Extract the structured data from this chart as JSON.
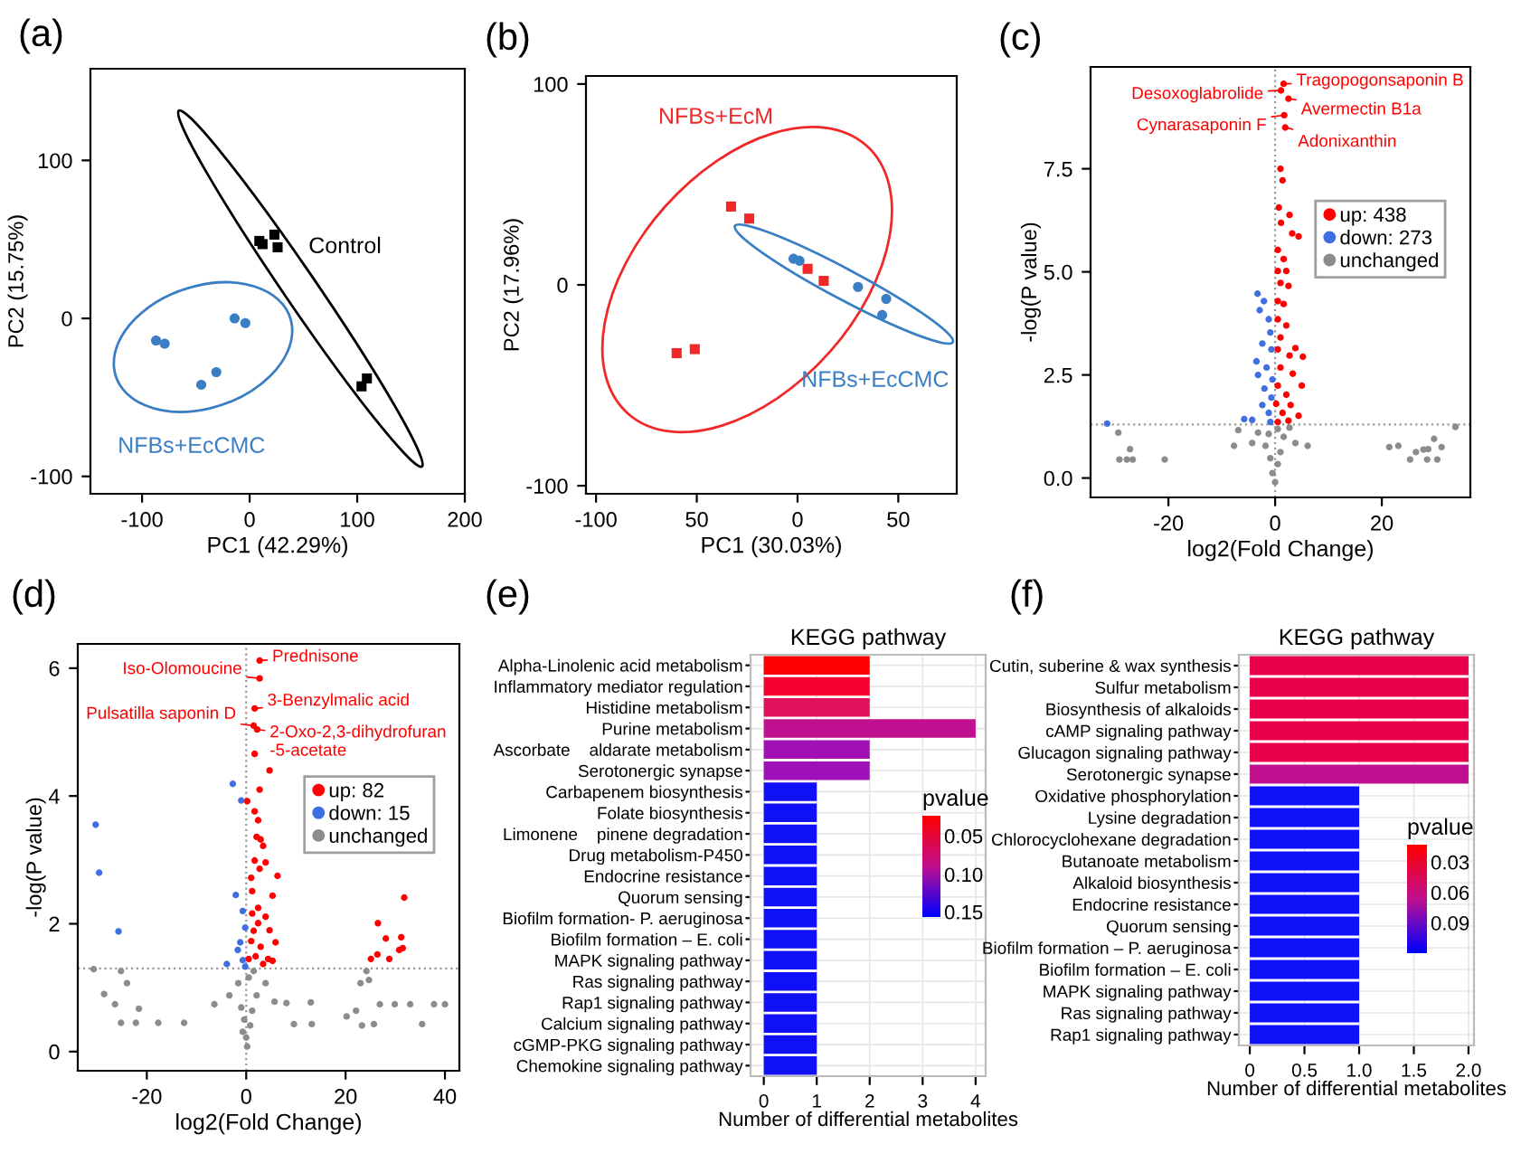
{
  "chart_data": [
    {
      "type": "scatter",
      "annotations": [
        "(a)"
      ],
      "xlabel": "PC1 (42.29%)",
      "ylabel": "PC2 (15.75%)",
      "xlim": [
        -148,
        200
      ],
      "ylim": [
        -111,
        158
      ],
      "xticks": [
        -100,
        0,
        100,
        200
      ],
      "yticks": [
        -100,
        0,
        100
      ],
      "series": [
        {
          "name": "Control",
          "color": "#000000",
          "marker": "square",
          "x": [
            9,
            12,
            23,
            26,
            104,
            109
          ],
          "values": [
            49,
            47,
            53,
            45,
            -43,
            -38
          ]
        },
        {
          "name": "NFBs+EcCMC",
          "color": "#3a7fc4",
          "marker": "circle",
          "x": [
            -87,
            -79,
            -14,
            -4,
            -31,
            -45
          ],
          "values": [
            -14,
            -16,
            0,
            -3,
            -34,
            -42
          ]
        }
      ]
    },
    {
      "type": "scatter",
      "annotations": [
        "(b)"
      ],
      "xlabel": "PC1 (30.03%)",
      "ylabel": "PC2 (17.96%)",
      "xlim": [
        -105,
        79
      ],
      "ylim": [
        -104,
        104
      ],
      "xticks": [
        -100,
        {
          "value": -50,
          "label": "50"
        },
        0,
        50
      ],
      "yticks": [
        -100,
        0,
        100
      ],
      "series": [
        {
          "name": "NFBs+EcM",
          "color": "#f02828",
          "marker": "square",
          "x": [
            -33,
            -24,
            5,
            13,
            -60,
            -51
          ],
          "values": [
            39,
            33,
            8,
            2,
            -34,
            -32
          ]
        },
        {
          "name": "NFBs+EcCMC",
          "color": "#3a7fc4",
          "marker": "circle",
          "x": [
            -2,
            1,
            30,
            44,
            42
          ],
          "values": [
            13,
            12,
            -1,
            -7,
            -15
          ]
        }
      ]
    },
    {
      "type": "scatter",
      "xlabel": "log2(Fold Change)",
      "ylabel": "-log(P value)",
      "xlim": [
        -34.6,
        36.6
      ],
      "ylim": [
        -0.47,
        9.97
      ],
      "xticks": [
        -20,
        0,
        20
      ],
      "yticks": [
        {
          "value": 0,
          "label": "0.0"
        },
        2.5,
        {
          "value": 5,
          "label": "5.0"
        },
        7.5
      ],
      "legend": "right",
      "marker": "circle",
      "ref_lines": [
        {
          "axis": "y",
          "value": 1.3,
          "color": "#999999",
          "line_style": "dotted"
        },
        {
          "axis": "x",
          "value": 0,
          "color": "#999999",
          "line_style": "dotted"
        }
      ],
      "annotations": [
        "(c)",
        {
          "text": "Tragopogonsaponin B",
          "x": 1.6,
          "y": 9.56
        },
        {
          "text": "Desoxoglabrolide",
          "x": 1.1,
          "y": 9.4
        },
        {
          "text": "Avermectin B1a",
          "x": 2.5,
          "y": 9.2
        },
        {
          "text": "Cynarasaponin F",
          "x": 1.7,
          "y": 8.8
        },
        {
          "text": "Adonixanthin",
          "x": 1.9,
          "y": 8.5
        }
      ],
      "series": [
        {
          "name": "up: 438",
          "color": "#ff0000",
          "x": [
            1.6,
            1.1,
            2.5,
            1.7,
            1.9,
            1.0,
            1.4,
            0.7,
            2.7,
            1.1,
            3.2,
            4.4,
            0.5,
            1.6,
            0.5,
            2.1,
            1.0,
            2.5,
            0.5,
            1.6,
            0.5,
            2.1,
            1.0,
            0.5,
            3.8,
            2.7,
            5.2,
            1.0,
            3.3,
            0.5,
            5.0,
            2.1,
            0.2,
            2.9,
            1.4,
            4.4,
            0.5,
            2.5
          ],
          "values": [
            9.56,
            9.4,
            9.2,
            8.8,
            8.5,
            7.5,
            7.22,
            6.56,
            6.38,
            6.19,
            5.93,
            5.86,
            5.53,
            5.31,
            5.02,
            5.02,
            4.73,
            4.66,
            4.29,
            4.22,
            3.85,
            3.7,
            3.41,
            3.12,
            3.15,
            2.97,
            2.94,
            2.68,
            2.53,
            2.24,
            2.24,
            2.02,
            1.8,
            1.77,
            1.58,
            1.51,
            1.36,
            1.39
          ]
        },
        {
          "name": "down: 273",
          "color": "#3f6fe0",
          "x": [
            -3.3,
            -2.1,
            -2.9,
            -1.2,
            -0.9,
            -2.4,
            -0.7,
            -3.5,
            -1.6,
            -3.2,
            -0.5,
            -2.0,
            -0.7,
            -2.4,
            -1.2,
            -5.8,
            -4.3,
            -0.9,
            -31.5
          ],
          "values": [
            4.47,
            4.29,
            4.07,
            3.85,
            3.53,
            3.26,
            3.12,
            2.83,
            2.68,
            2.5,
            2.39,
            2.17,
            1.95,
            1.77,
            1.58,
            1.43,
            1.41,
            1.36,
            1.32
          ]
        },
        {
          "name": "unchanged",
          "color": "#8c8c8c",
          "x": [
            -29.4,
            -27.2,
            -29.2,
            -27.8,
            -26.7,
            -20.7,
            -6.9,
            -7.7,
            -4.3,
            -3.2,
            -1.8,
            -0.9,
            -0.5,
            0,
            0.5,
            1.0,
            1.6,
            2.7,
            3.8,
            6.1,
            -1.2,
            0.5,
            21.4,
            23.1,
            25.3,
            26.4,
            27.8,
            28.5,
            29.8,
            31.2,
            30.4,
            33.8,
            28.7
          ],
          "values": [
            1.1,
            0.7,
            0.45,
            0.45,
            0.45,
            0.45,
            1.16,
            0.78,
            0.85,
            1.1,
            0.78,
            0.48,
            0.12,
            -0.1,
            0.34,
            0.63,
            1.0,
            1.22,
            0.85,
            0.78,
            1.07,
            1.19,
            0.75,
            0.78,
            0.45,
            0.63,
            0.69,
            0.45,
            0.95,
            0.75,
            0.45,
            1.24,
            0.7
          ]
        }
      ]
    },
    {
      "type": "scatter",
      "xlabel": "log2(Fold Change)",
      "ylabel": "-log(P value)",
      "xlim": [
        -33.9,
        42.9
      ],
      "ylim": [
        -0.3,
        6.38
      ],
      "xticks": [
        -20,
        0,
        20,
        40
      ],
      "yticks": [
        0,
        2,
        4,
        6
      ],
      "legend": "right",
      "marker": "circle",
      "ref_lines": [
        {
          "axis": "y",
          "value": 1.3,
          "color": "#999999",
          "line_style": "dotted"
        },
        {
          "axis": "x",
          "value": 0,
          "color": "#999999",
          "line_style": "dotted"
        }
      ],
      "annotations": [
        "(d)",
        {
          "text": "Prednisone",
          "x": 2.7,
          "y": 6.12
        },
        {
          "text": "Iso-Olomoucine",
          "x": 2.7,
          "y": 5.84
        },
        {
          "text": "3-Benzylmalic acid",
          "x": 1.7,
          "y": 5.37
        },
        {
          "text": "Pulsatilla saponin D",
          "x": 1.5,
          "y": 5.1
        },
        {
          "text": "2-Oxo-2,3-dihydrofuran\n-5-acetate",
          "x": 2.2,
          "y": 5.04
        }
      ],
      "series": [
        {
          "name": "up: 82",
          "color": "#ff0000",
          "x": [
            2.7,
            2.7,
            1.7,
            1.5,
            2.2,
            1.7,
            4.7,
            2.7,
            0.2,
            1.7,
            2.4,
            2.1,
            2.9,
            3.4,
            1.7,
            3.9,
            2.7,
            1.0,
            6.3,
            1.2,
            5.3,
            2.4,
            1.2,
            3.9,
            2.4,
            1.5,
            4.7,
            1.0,
            2.9,
            5.9,
            1.9,
            4.4,
            5.3,
            0.5,
            3.4,
            31.8,
            26.5,
            28.1,
            31.2,
            31.5,
            30.8,
            25.1,
            26.4,
            28.8
          ],
          "values": [
            6.12,
            5.84,
            5.37,
            5.1,
            5.04,
            4.66,
            4.4,
            4.1,
            3.92,
            3.76,
            3.62,
            3.36,
            3.32,
            3.22,
            2.99,
            2.96,
            2.86,
            2.72,
            2.75,
            2.51,
            2.44,
            2.25,
            2.16,
            2.11,
            2.01,
            1.89,
            1.9,
            1.73,
            1.64,
            1.71,
            1.49,
            1.45,
            1.42,
            1.45,
            1.37,
            2.41,
            2.01,
            1.77,
            1.79,
            1.62,
            1.59,
            1.45,
            1.52,
            1.45
          ]
        },
        {
          "name": "down: 15",
          "color": "#3f6fe0",
          "x": [
            -30.3,
            -29.6,
            -25.7,
            -2.7,
            -1.0,
            -2.1,
            -0.7,
            -0.2,
            -1.2,
            -1.7,
            -3.9,
            -0.7,
            -0.2
          ],
          "values": [
            3.55,
            2.8,
            1.88,
            4.19,
            3.93,
            2.45,
            2.2,
            1.94,
            1.71,
            1.59,
            1.37,
            1.43,
            1.33
          ]
        },
        {
          "name": "unchanged",
          "color": "#8c8c8c",
          "x": [
            -30.7,
            -28.6,
            -26.4,
            -25.2,
            -24,
            -21.6,
            -25.2,
            -22.2,
            -17.7,
            -12.5,
            -6.4,
            -3.4,
            -1.6,
            0.5,
            1.5,
            -1.0,
            -0.4,
            0,
            0.2,
            -0.7,
            0.8,
            1.2,
            2.1,
            3.9,
            5.7,
            8.1,
            9.6,
            13,
            13.2,
            20.2,
            22.1,
            23,
            24.2,
            23.3,
            25.7,
            26.9,
            29.9,
            33,
            37.8,
            40,
            35.4,
            24.7
          ],
          "values": [
            1.29,
            0.9,
            0.74,
            1.26,
            1.07,
            0.67,
            0.45,
            0.45,
            0.45,
            0.45,
            0.74,
            0.88,
            1.07,
            1.16,
            1.26,
            0.69,
            0.5,
            0.22,
            0.08,
            0.31,
            0.41,
            0.64,
            0.88,
            1.07,
            0.78,
            0.76,
            0.43,
            0.77,
            0.43,
            0.55,
            0.64,
            1.07,
            1.26,
            0.41,
            0.43,
            0.74,
            0.74,
            0.74,
            0.74,
            0.74,
            0.43,
            1.12
          ]
        }
      ]
    },
    {
      "type": "bar",
      "orientation": "horizontal",
      "title": "KEGG pathway",
      "annotations": [
        "(e)",
        "pvalue",
        "0.05",
        "0.10",
        "0.15"
      ],
      "xlabel": "Number of differential metabolites",
      "xlim": [
        -0.25,
        4.19
      ],
      "xticks": [
        0,
        1,
        2,
        3,
        4
      ],
      "grid": true,
      "categories": [
        "Alpha-Linolenic acid metabolism",
        "Inflammatory mediator regulation",
        "Histidine metabolism",
        "Purine metabolism",
        "Ascorbate    aldarate metabolism",
        "Serotonergic synapse",
        "Carbapenem biosynthesis",
        "Folate biosynthesis",
        "Limonene    pinene degradation",
        "Drug metabolism-P450",
        "Endocrine resistance",
        "Quorum sensing",
        "Biofilm formation- P. aeruginosa",
        "Biofilm formation – E. coli",
        "MAPK signaling pathway",
        "Ras signaling pathway",
        "Rap1 signaling pathway",
        "Calcium signaling pathway",
        "cGMP-PKG signaling pathway",
        "Chemokine signaling pathway"
      ],
      "values": [
        2,
        2,
        2,
        4,
        2,
        2,
        1,
        1,
        1,
        1,
        1,
        1,
        1,
        1,
        1,
        1,
        1,
        1,
        1,
        1
      ],
      "colors": [
        "#ff0000",
        "#f50030",
        "#e0105a",
        "#c0108f",
        "#a010b4",
        "#a010b8",
        "#1010f8",
        "#1010f8",
        "#1010f8",
        "#1010f8",
        "#1010f8",
        "#1010f8",
        "#1010f8",
        "#1010f8",
        "#1010f8",
        "#1010f8",
        "#1010f8",
        "#1010f8",
        "#1010f8",
        "#1010f8"
      ]
    },
    {
      "type": "bar",
      "orientation": "horizontal",
      "title": "KEGG pathway",
      "annotations": [
        "(f)",
        "pvalue",
        "0.03",
        "0.06",
        "0.09"
      ],
      "xlabel": "Number of differential metabolites",
      "xlim": [
        -0.1,
        2.05
      ],
      "xticks": [
        0,
        0.5,
        {
          "value": 1,
          "label": "1.0"
        },
        1.5,
        {
          "value": 2,
          "label": "2.0"
        }
      ],
      "grid": true,
      "categories": [
        "Cutin, suberine & wax synthesis",
        "Sulfur metabolism",
        "Biosynthesis of alkaloids",
        "cAMP signaling pathway",
        "Glucagon signaling pathway",
        "Serotonergic synapse",
        "Oxidative phosphorylation",
        "Lysine degradation",
        "Chlorocyclohexane degradation",
        "Butanoate metabolism",
        "Alkaloid biosynthesis",
        "Endocrine resistance",
        "Quorum sensing",
        "Biofilm formation – P. aeruginosa",
        "Biofilm formation – E. coli",
        "MAPK signaling pathway",
        "Ras signaling pathway",
        "Rap1 signaling pathway"
      ],
      "values": [
        2,
        2,
        2,
        2,
        2,
        2,
        1,
        1,
        1,
        1,
        1,
        1,
        1,
        1,
        1,
        1,
        1,
        1
      ],
      "colors": [
        "#e8004a",
        "#e8004a",
        "#e8004a",
        "#e8004a",
        "#e8004a",
        "#c0108f",
        "#1010f8",
        "#1010f8",
        "#1010f8",
        "#1010f8",
        "#1010f8",
        "#1010f8",
        "#1010f8",
        "#1010f8",
        "#1010f8",
        "#1010f8",
        "#1010f8",
        "#1010f8"
      ]
    }
  ]
}
